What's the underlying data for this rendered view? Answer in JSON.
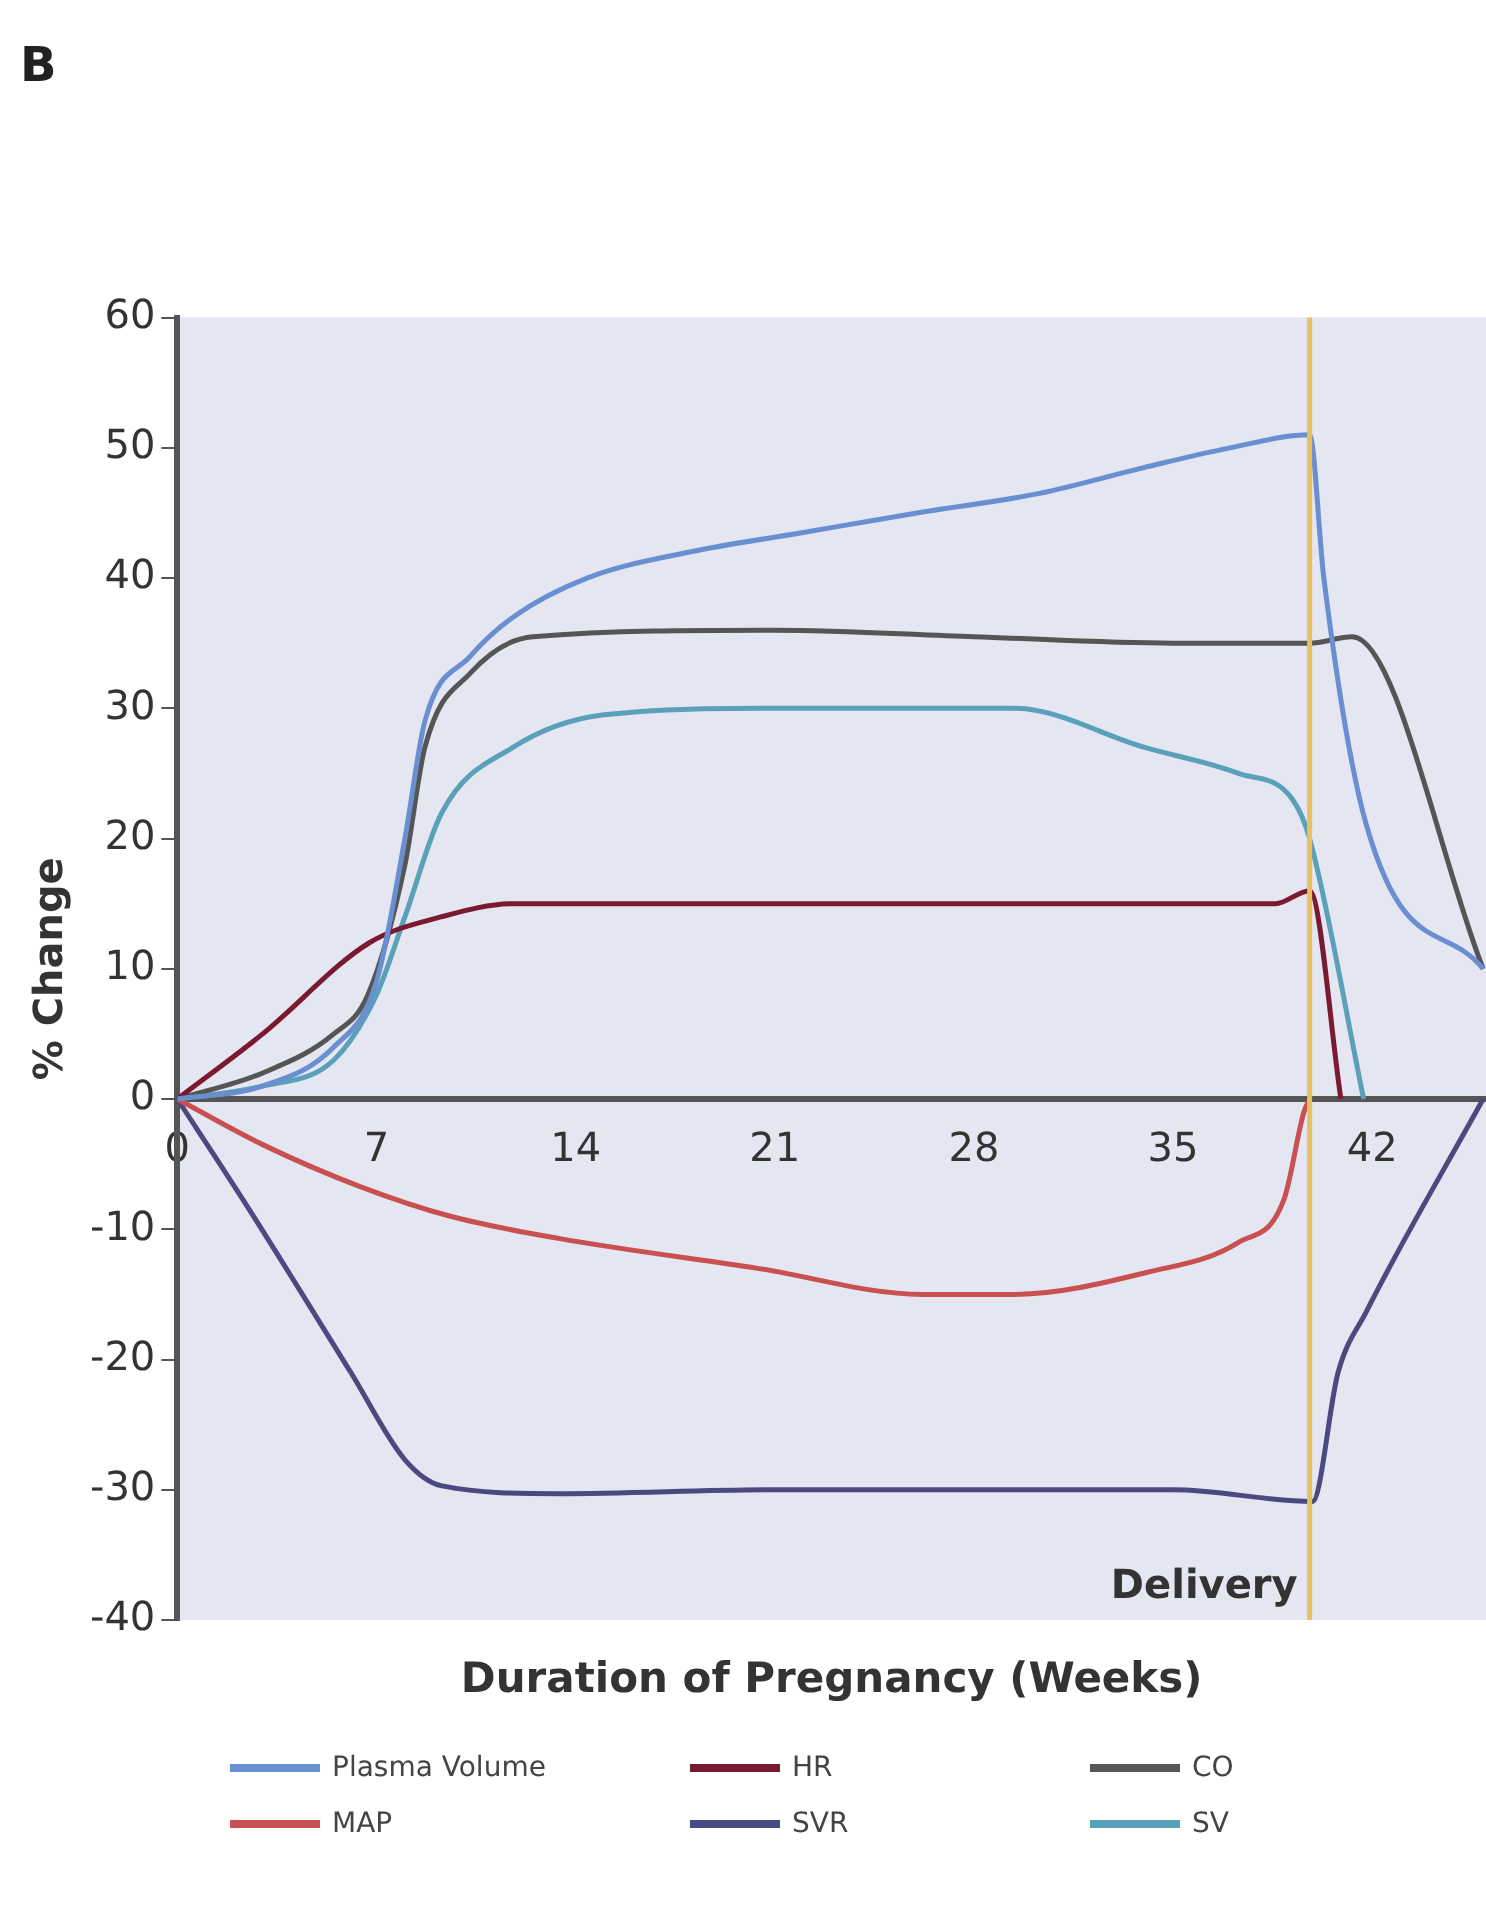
{
  "chart_data": {
    "type": "line",
    "title": "B",
    "xlabel": "Duration of Pregnancy (Weeks)",
    "ylabel": "% Change",
    "xlim": [
      0,
      46
    ],
    "xticks": [
      0,
      7,
      14,
      21,
      28,
      35,
      42
    ],
    "ylim": [
      -40,
      60
    ],
    "yticks": [
      -40,
      -30,
      -20,
      -10,
      0,
      10,
      20,
      30,
      40,
      50,
      60
    ],
    "grid": false,
    "legend": "bottom",
    "marker": "none",
    "series": [
      {
        "name": "Plasma Volume",
        "color": "#6a8fd0",
        "x": [
          0,
          3,
          5.5,
          7,
          8,
          8.7,
          10.3,
          11.8,
          14.4,
          18,
          22,
          26,
          30.3,
          34,
          37,
          39.8,
          40.3,
          41.8,
          45.9
        ],
        "values": [
          0,
          1,
          4,
          9,
          20,
          29,
          34,
          37,
          40,
          42,
          43.5,
          45,
          46.5,
          48.5,
          50,
          51,
          40,
          21,
          10
        ]
      },
      {
        "name": "HR",
        "color": "#7a1a30",
        "x": [
          0,
          3,
          6.75,
          9.3,
          11.8,
          20,
          30,
          38.6,
          39.8,
          40.9
        ],
        "values": [
          0,
          5,
          12,
          14,
          15,
          15,
          15,
          15,
          16,
          0
        ]
      },
      {
        "name": "CO",
        "color": "#555555",
        "x": [
          0,
          3,
          5.5,
          6.7,
          8,
          8.7,
          10.3,
          12.5,
          21,
          28,
          35,
          39.8,
          41.3,
          45.9
        ],
        "values": [
          0,
          2,
          5,
          8,
          18,
          27,
          32.7,
          35.5,
          36,
          35.5,
          35,
          35,
          35.5,
          10
        ]
      },
      {
        "name": "MAP",
        "color": "#c85050",
        "x": [
          0,
          3,
          6.4,
          9.6,
          13.4,
          20.4,
          26.2,
          29.4,
          34.1,
          37.3,
          38.9,
          39.6,
          39.8
        ],
        "values": [
          0,
          -3.5,
          -6.7,
          -9,
          -10.7,
          -13,
          -15,
          -15,
          -13.3,
          -11,
          -7.7,
          -1,
          0
        ]
      },
      {
        "name": "SVR",
        "color": "#4a4a80",
        "x": [
          0,
          2.3,
          6.1,
          8,
          9.3,
          13.4,
          21,
          28,
          35,
          39.9,
          40.8,
          41.8,
          45.9
        ],
        "values": [
          0,
          -7.7,
          -21,
          -27.7,
          -29.7,
          -30.3,
          -30,
          -30,
          -30,
          -30.9,
          -21,
          -16.3,
          0
        ]
      },
      {
        "name": "SV",
        "color": "#5aa0b8",
        "x": [
          0,
          3,
          5.5,
          7,
          8,
          9.3,
          11.8,
          15,
          21,
          29.4,
          34,
          37.3,
          39.2,
          39.8,
          41.7
        ],
        "values": [
          0,
          1,
          3,
          8,
          14,
          22,
          27,
          29.5,
          30,
          30,
          27,
          25,
          23,
          20,
          0
        ]
      }
    ],
    "ref_lines": [
      {
        "axis": "x",
        "value": 39.8,
        "label": "Delivery",
        "color": "#e8c060"
      }
    ]
  }
}
